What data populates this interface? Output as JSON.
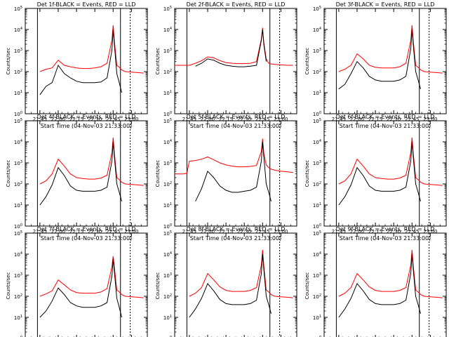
{
  "figure": {
    "ylabel": "Counts/sec",
    "xlabel": "Start Time (04-Nov-03 21:33:00)",
    "x_tick_labels": [
      "21:45",
      "22:00",
      "22:15",
      "22:30",
      "22:45",
      "23:00"
    ],
    "y_tick_labels": [
      {
        "base": "10",
        "exp": "0"
      },
      {
        "base": "10",
        "exp": "1"
      },
      {
        "base": "10",
        "exp": "2"
      },
      {
        "base": "10",
        "exp": "3"
      },
      {
        "base": "10",
        "exp": "4"
      },
      {
        "base": "10",
        "exp": "5"
      }
    ],
    "colors": {
      "events": "#000000",
      "lld": "#ff0000"
    }
  },
  "chart_data": [
    {
      "type": "line",
      "title": "Det 1f-BLACK = Events, RED = LLD",
      "xlabel": "Start Time (04-Nov-03 21:33:00)",
      "ylabel": "Counts/sec",
      "y_scale": "log",
      "ylim": [
        1,
        100000
      ],
      "xlim": [
        "21:33",
        "23:13"
      ],
      "grid": false,
      "x": [
        "21:43",
        "21:45",
        "21:50",
        "21:55",
        "22:00",
        "22:05",
        "22:10",
        "22:15",
        "22:20",
        "22:25",
        "22:30",
        "22:35",
        "22:40",
        "22:44",
        "22:45",
        "22:46",
        "22:48",
        "22:50",
        "22:52",
        "22:55",
        "23:00",
        "23:05",
        "23:10"
      ],
      "series": [
        {
          "name": "Events",
          "values": [
            null,
            8,
            20,
            30,
            200,
            80,
            50,
            35,
            30,
            30,
            30,
            32,
            50,
            1000,
            10000,
            2000,
            80,
            30,
            10,
            null,
            null,
            null,
            null
          ]
        },
        {
          "name": "LLD",
          "values": [
            null,
            100,
            130,
            150,
            350,
            200,
            170,
            150,
            140,
            140,
            150,
            170,
            250,
            3000,
            16000,
            3000,
            200,
            160,
            120,
            100,
            95,
            90,
            85
          ]
        }
      ],
      "vlines": [
        "21:43",
        "22:51",
        "22:59"
      ]
    },
    {
      "type": "line",
      "title": "Det 2f-BLACK = Events, RED = LLD",
      "xlabel": "Start Time (04-Nov-03 21:33:00)",
      "ylabel": "Counts/sec",
      "y_scale": "log",
      "ylim": [
        1,
        100000
      ],
      "xlim": [
        "21:33",
        "23:13"
      ],
      "grid": false,
      "x": [
        "21:33",
        "21:40",
        "21:45",
        "21:50",
        "21:55",
        "22:00",
        "22:05",
        "22:10",
        "22:15",
        "22:20",
        "22:25",
        "22:30",
        "22:35",
        "22:40",
        "22:44",
        "22:45",
        "22:46",
        "22:48",
        "22:50",
        "22:52",
        "22:55",
        "23:00",
        "23:05",
        "23:10"
      ],
      "series": [
        {
          "name": "Events",
          "values": [
            null,
            null,
            null,
            180,
            250,
            400,
            350,
            250,
            200,
            180,
            170,
            170,
            180,
            200,
            3000,
            10000,
            2000,
            300,
            null,
            null,
            null,
            null,
            null,
            null
          ]
        },
        {
          "name": "LLD",
          "values": [
            200,
            200,
            200,
            250,
            330,
            500,
            450,
            330,
            270,
            250,
            240,
            240,
            250,
            300,
            3500,
            12000,
            2500,
            400,
            250,
            230,
            220,
            210,
            200,
            200
          ]
        }
      ],
      "vlines": [
        "21:43",
        "22:51",
        "22:59"
      ]
    },
    {
      "type": "line",
      "title": "Det 3f-BLACK = Events, RED = LLD",
      "xlabel": "Start Time (04-Nov-03 21:33:00)",
      "ylabel": "Counts/sec",
      "y_scale": "log",
      "ylim": [
        1,
        100000
      ],
      "xlim": [
        "21:33",
        "23:13"
      ],
      "grid": false,
      "x": [
        "21:43",
        "21:45",
        "21:50",
        "21:55",
        "22:00",
        "22:05",
        "22:10",
        "22:15",
        "22:20",
        "22:25",
        "22:30",
        "22:35",
        "22:40",
        "22:44",
        "22:45",
        "22:46",
        "22:48",
        "22:50",
        "22:52",
        "22:55",
        "23:00",
        "23:05",
        "23:10"
      ],
      "series": [
        {
          "name": "Events",
          "values": [
            null,
            15,
            25,
            80,
            300,
            150,
            60,
            40,
            35,
            35,
            35,
            40,
            60,
            1200,
            10000,
            2000,
            100,
            40,
            15,
            null,
            null,
            null,
            null
          ]
        },
        {
          "name": "LLD",
          "values": [
            null,
            100,
            130,
            200,
            700,
            400,
            200,
            160,
            150,
            150,
            150,
            170,
            250,
            3000,
            16000,
            3000,
            200,
            160,
            120,
            100,
            95,
            90,
            85
          ]
        }
      ],
      "vlines": [
        "21:43",
        "22:51",
        "22:59"
      ]
    },
    {
      "type": "line",
      "title": "Det 4f-BLACK = Events, RED = LLD",
      "xlabel": "Start Time (04-Nov-03 21:33:00)",
      "ylabel": "Counts/sec",
      "y_scale": "log",
      "ylim": [
        1,
        100000
      ],
      "xlim": [
        "21:33",
        "23:13"
      ],
      "grid": false,
      "x": [
        "21:43",
        "21:45",
        "21:50",
        "21:55",
        "22:00",
        "22:05",
        "22:10",
        "22:15",
        "22:20",
        "22:25",
        "22:30",
        "22:35",
        "22:40",
        "22:44",
        "22:45",
        "22:46",
        "22:48",
        "22:50",
        "22:52",
        "22:55",
        "23:00",
        "23:05",
        "23:10"
      ],
      "series": [
        {
          "name": "Events",
          "values": [
            null,
            10,
            25,
            90,
            600,
            250,
            80,
            50,
            45,
            45,
            45,
            50,
            70,
            1200,
            10000,
            2000,
            100,
            40,
            15,
            null,
            null,
            null,
            null
          ]
        },
        {
          "name": "LLD",
          "values": [
            null,
            100,
            140,
            300,
            1500,
            700,
            300,
            200,
            180,
            170,
            170,
            190,
            260,
            3000,
            16000,
            3000,
            200,
            160,
            120,
            100,
            95,
            90,
            85
          ]
        }
      ],
      "vlines": [
        "21:43",
        "22:51",
        "22:59"
      ]
    },
    {
      "type": "line",
      "title": "Det 5f-BLACK = Events, RED = LLD",
      "xlabel": "Start Time (04-Nov-03 21:33:00)",
      "ylabel": "Counts/sec",
      "y_scale": "log",
      "ylim": [
        1,
        100000
      ],
      "xlim": [
        "21:33",
        "23:13"
      ],
      "grid": false,
      "x": [
        "21:33",
        "21:40",
        "21:43",
        "21:45",
        "21:50",
        "21:55",
        "22:00",
        "22:05",
        "22:10",
        "22:15",
        "22:20",
        "22:25",
        "22:30",
        "22:35",
        "22:40",
        "22:44",
        "22:45",
        "22:46",
        "22:48",
        "22:50",
        "22:52",
        "22:55",
        "23:00",
        "23:05",
        "23:10"
      ],
      "series": [
        {
          "name": "Events",
          "values": [
            null,
            null,
            null,
            null,
            15,
            60,
            400,
            200,
            80,
            50,
            40,
            40,
            45,
            50,
            70,
            1200,
            10000,
            2000,
            100,
            40,
            15,
            null,
            null,
            null,
            null
          ]
        },
        {
          "name": "LLD",
          "values": [
            300,
            300,
            320,
            1200,
            1300,
            1500,
            1900,
            1400,
            1000,
            800,
            700,
            650,
            650,
            680,
            750,
            3500,
            14000,
            3000,
            800,
            600,
            500,
            450,
            400,
            380,
            350
          ]
        }
      ],
      "vlines": [
        "21:43",
        "22:51",
        "22:59"
      ]
    },
    {
      "type": "line",
      "title": "Det 6f-BLACK = Events, RED = LLD",
      "xlabel": "Start Time (04-Nov-03 21:33:00)",
      "ylabel": "Counts/sec",
      "y_scale": "log",
      "ylim": [
        1,
        100000
      ],
      "xlim": [
        "21:33",
        "23:13"
      ],
      "grid": false,
      "x": [
        "21:43",
        "21:45",
        "21:50",
        "21:55",
        "22:00",
        "22:05",
        "22:10",
        "22:15",
        "22:20",
        "22:25",
        "22:30",
        "22:35",
        "22:40",
        "22:44",
        "22:45",
        "22:46",
        "22:48",
        "22:50",
        "22:52",
        "22:55",
        "23:00",
        "23:05",
        "23:10"
      ],
      "series": [
        {
          "name": "Events",
          "values": [
            null,
            10,
            25,
            90,
            600,
            250,
            80,
            50,
            45,
            45,
            45,
            50,
            70,
            1200,
            10000,
            2000,
            100,
            40,
            15,
            null,
            null,
            null,
            null
          ]
        },
        {
          "name": "LLD",
          "values": [
            null,
            100,
            140,
            300,
            1500,
            700,
            300,
            200,
            180,
            170,
            170,
            190,
            260,
            3000,
            16000,
            3000,
            200,
            160,
            120,
            100,
            95,
            90,
            85
          ]
        }
      ],
      "vlines": [
        "21:43",
        "22:51",
        "22:59"
      ]
    },
    {
      "type": "line",
      "title": "Det 7f-BLACK = Events, RED = LLD",
      "xlabel": "Start Time (04-Nov-03 21:33:00)",
      "ylabel": "Counts/sec",
      "y_scale": "log",
      "ylim": [
        1,
        100000
      ],
      "xlim": [
        "21:33",
        "23:13"
      ],
      "grid": false,
      "x": [
        "21:43",
        "21:45",
        "21:50",
        "21:55",
        "22:00",
        "22:05",
        "22:10",
        "22:15",
        "22:20",
        "22:25",
        "22:30",
        "22:35",
        "22:40",
        "22:44",
        "22:45",
        "22:46",
        "22:48",
        "22:50",
        "22:52",
        "22:55",
        "23:00",
        "23:05",
        "23:10"
      ],
      "series": [
        {
          "name": "Events",
          "values": [
            null,
            10,
            20,
            60,
            250,
            120,
            50,
            35,
            30,
            30,
            30,
            35,
            50,
            900,
            6000,
            1500,
            80,
            30,
            10,
            null,
            null,
            null,
            null
          ]
        },
        {
          "name": "LLD",
          "values": [
            null,
            100,
            130,
            180,
            600,
            350,
            200,
            150,
            140,
            140,
            140,
            160,
            230,
            2500,
            8000,
            2500,
            200,
            160,
            120,
            100,
            95,
            90,
            85
          ]
        }
      ],
      "vlines": [
        "21:43",
        "22:51",
        "22:59"
      ]
    },
    {
      "type": "line",
      "title": "Det 8f-BLACK = Events, RED = LLD",
      "xlabel": "Start Time (04-Nov-03 21:33:00)",
      "ylabel": "Counts/sec",
      "y_scale": "log",
      "ylim": [
        1,
        100000
      ],
      "xlim": [
        "21:33",
        "23:13"
      ],
      "grid": false,
      "x": [
        "21:43",
        "21:45",
        "21:50",
        "21:55",
        "22:00",
        "22:05",
        "22:10",
        "22:15",
        "22:20",
        "22:25",
        "22:30",
        "22:35",
        "22:40",
        "22:44",
        "22:45",
        "22:46",
        "22:48",
        "22:50",
        "22:52",
        "22:55",
        "23:00",
        "23:05",
        "23:10"
      ],
      "series": [
        {
          "name": "Events",
          "values": [
            null,
            10,
            25,
            80,
            400,
            180,
            70,
            45,
            40,
            40,
            40,
            45,
            65,
            1200,
            10000,
            2000,
            100,
            40,
            15,
            null,
            null,
            null,
            null
          ]
        },
        {
          "name": "LLD",
          "values": [
            null,
            100,
            140,
            260,
            1200,
            600,
            280,
            190,
            170,
            170,
            170,
            190,
            260,
            3000,
            16000,
            3000,
            200,
            160,
            120,
            100,
            95,
            90,
            85
          ]
        }
      ],
      "vlines": [
        "21:43",
        "22:51",
        "22:59"
      ]
    },
    {
      "type": "line",
      "title": "Det 9f-BLACK = Events, RED = LLD",
      "xlabel": "Start Time (04-Nov-03 21:33:00)",
      "ylabel": "Counts/sec",
      "y_scale": "log",
      "ylim": [
        1,
        100000
      ],
      "xlim": [
        "21:33",
        "23:13"
      ],
      "grid": false,
      "x": [
        "21:43",
        "21:45",
        "21:50",
        "21:55",
        "22:00",
        "22:05",
        "22:10",
        "22:15",
        "22:20",
        "22:25",
        "22:30",
        "22:35",
        "22:40",
        "22:44",
        "22:45",
        "22:46",
        "22:48",
        "22:50",
        "22:52",
        "22:55",
        "23:00",
        "23:05",
        "23:10"
      ],
      "series": [
        {
          "name": "Events",
          "values": [
            null,
            10,
            25,
            80,
            400,
            180,
            70,
            45,
            40,
            40,
            40,
            45,
            65,
            1200,
            10000,
            2000,
            100,
            40,
            15,
            null,
            null,
            null,
            null
          ]
        },
        {
          "name": "LLD",
          "values": [
            null,
            100,
            140,
            260,
            1200,
            600,
            280,
            190,
            170,
            170,
            170,
            190,
            260,
            3000,
            16000,
            3000,
            200,
            160,
            120,
            100,
            95,
            90,
            85
          ]
        }
      ],
      "vlines": [
        "21:43",
        "22:51",
        "22:59"
      ]
    }
  ]
}
